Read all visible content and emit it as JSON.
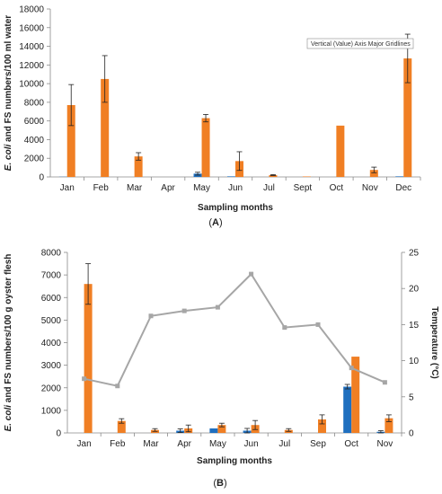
{
  "tooltip": "Vertical (Value) Axis Major Gridlines",
  "chart_data": [
    {
      "type": "bar",
      "panel_label": "A",
      "xlabel": "Sampling months",
      "ylabel_italic": "E. coli",
      "ylabel_rest": " and FS numbers/100 ml water",
      "categories": [
        "Jan",
        "Feb",
        "Mar",
        "Apr",
        "May",
        "Jun",
        "Jul",
        "Sept",
        "Oct",
        "Nov",
        "Dec"
      ],
      "ylim": [
        0,
        18000
      ],
      "yticks": [
        0,
        2000,
        4000,
        6000,
        8000,
        10000,
        12000,
        14000,
        16000,
        18000
      ],
      "grid": false,
      "series": [
        {
          "color": "#1f6fbf",
          "values": [
            20,
            0,
            0,
            0,
            350,
            60,
            0,
            0,
            0,
            0,
            60
          ],
          "errors": [
            0,
            0,
            0,
            0,
            150,
            0,
            0,
            0,
            0,
            0,
            0
          ]
        },
        {
          "color": "#f07f24",
          "values": [
            7700,
            10500,
            2200,
            0,
            6300,
            1700,
            200,
            50,
            5500,
            750,
            12700
          ],
          "errors": [
            2200,
            2500,
            400,
            0,
            400,
            1000,
            50,
            0,
            0,
            300,
            2600
          ]
        }
      ]
    },
    {
      "type": "bar+line",
      "panel_label": "B",
      "xlabel": "Sampling months",
      "ylabel_italic": "E. coli",
      "ylabel_rest": " and FS numbers/100 g oyster flesh",
      "y2label": "Temperature (°C)",
      "categories": [
        "Jan",
        "Feb",
        "Mar",
        "Apr",
        "May",
        "Jun",
        "Jul",
        "Sep",
        "Oct",
        "Nov"
      ],
      "ylim": [
        0,
        8000
      ],
      "yticks": [
        0,
        1000,
        2000,
        3000,
        4000,
        5000,
        6000,
        7000,
        8000
      ],
      "y2lim": [
        0,
        25
      ],
      "y2ticks": [
        0,
        5,
        10,
        15,
        20,
        25
      ],
      "grid": false,
      "series": [
        {
          "color": "#1f6fbf",
          "values": [
            0,
            0,
            0,
            100,
            200,
            100,
            0,
            0,
            2050,
            50
          ],
          "errors": [
            0,
            0,
            0,
            80,
            0,
            100,
            0,
            0,
            100,
            50
          ]
        },
        {
          "color": "#f07f24",
          "values": [
            6600,
            530,
            130,
            200,
            350,
            350,
            130,
            600,
            3380,
            650
          ],
          "errors": [
            900,
            100,
            60,
            150,
            80,
            200,
            60,
            200,
            0,
            150
          ]
        }
      ],
      "line": {
        "color": "#a6a6a6",
        "values": [
          7.5,
          6.5,
          16.2,
          16.9,
          17.4,
          22.0,
          14.6,
          15.0,
          9.0,
          7.0
        ]
      }
    }
  ]
}
